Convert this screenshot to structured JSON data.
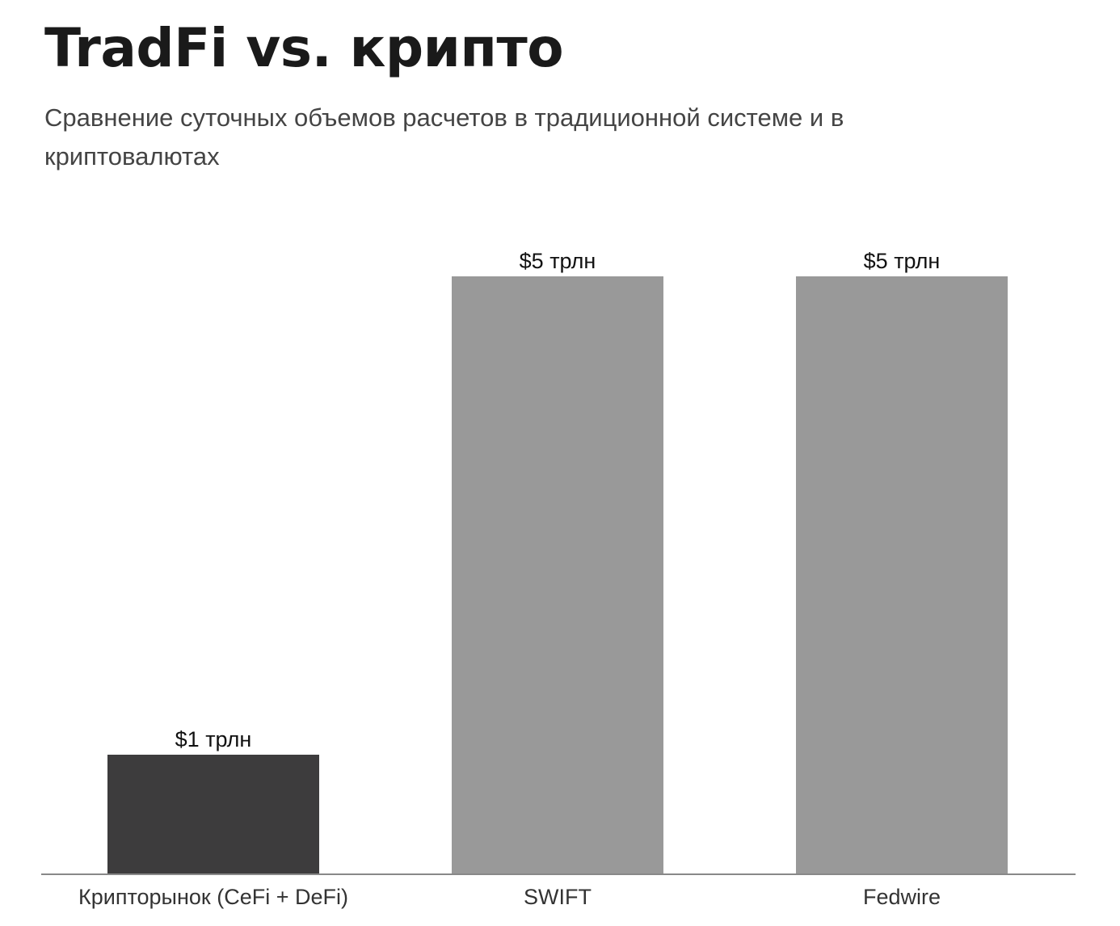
{
  "chart_data": {
    "type": "bar",
    "title": "TradFi vs. крипто",
    "subtitle": "Сравнение суточных объемов расчетов в традиционной системе и в криптовалютах",
    "categories": [
      "Крипторынок (CeFi + DeFi)",
      "SWIFT",
      "Fedwire"
    ],
    "values": [
      1,
      5,
      5
    ],
    "value_labels": [
      "$1 трлн",
      "$5 трлн",
      "$5 трлн"
    ],
    "colors": [
      "#3d3c3d",
      "#999999",
      "#999999"
    ],
    "xlabel": "",
    "ylabel": "",
    "ylim": [
      0,
      5
    ],
    "grid": false,
    "legend": "none"
  }
}
